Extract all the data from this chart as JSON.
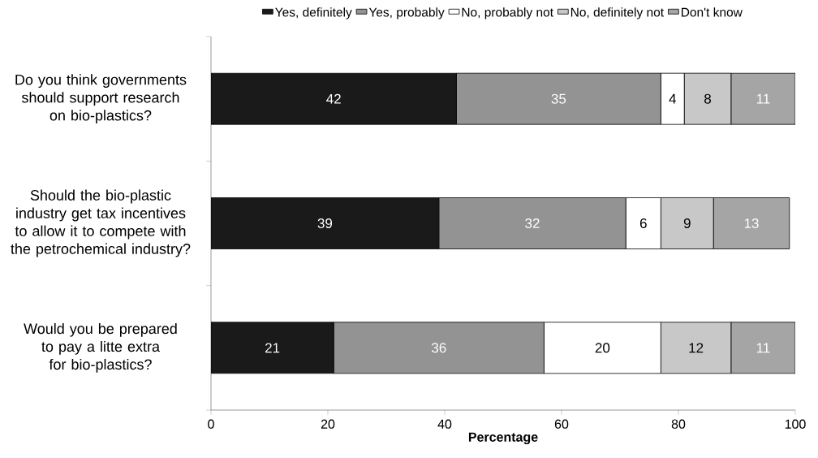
{
  "chart_data": {
    "type": "bar",
    "orientation": "horizontal",
    "stacked": true,
    "xlabel": "Percentage",
    "categories": [
      "Do you think governments should support research on bio-plastics?",
      "Should the bio-plastic industry get tax incentives to allow it to compete with the petrochemical industry?",
      "Would you be prepared to pay a litte extra for bio-plastics?"
    ],
    "series": [
      {
        "name": "Yes, definitely",
        "color": "#1a1a1a",
        "values": [
          42,
          39,
          21
        ]
      },
      {
        "name": "Yes, probably",
        "color": "#939393",
        "values": [
          35,
          32,
          36
        ]
      },
      {
        "name": "No, probably not",
        "color": "#ffffff",
        "values": [
          4,
          6,
          20
        ]
      },
      {
        "name": "No, definitely not",
        "color": "#c8c8c8",
        "values": [
          8,
          9,
          12
        ]
      },
      {
        "name": "Don't know",
        "color": "#a5a5a5",
        "values": [
          11,
          13,
          11
        ]
      }
    ],
    "xlim": [
      0,
      100
    ],
    "xticks": [
      0,
      20,
      40,
      60,
      80,
      100
    ],
    "data_labels": true,
    "legend": "top",
    "grid": false
  }
}
